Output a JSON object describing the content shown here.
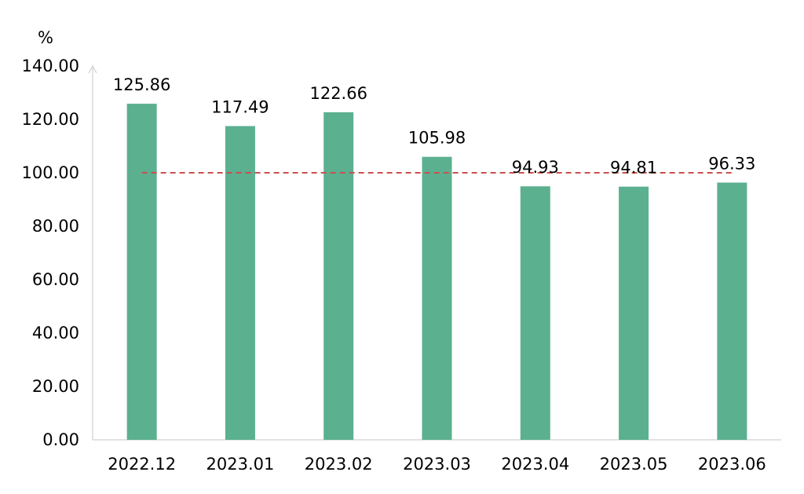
{
  "chart_data": {
    "type": "bar",
    "title": "",
    "xlabel": "",
    "ylabel": "%",
    "categories": [
      "2022.12",
      "2023.01",
      "2023.02",
      "2023.03",
      "2023.04",
      "2023.05",
      "2023.06"
    ],
    "series": [
      {
        "values": [
          125.86,
          117.49,
          122.66,
          105.98,
          94.93,
          94.81,
          96.33
        ],
        "color": "#5bb090"
      }
    ],
    "data_labels": [
      "125.86",
      "117.49",
      "122.66",
      "105.98",
      "94.93",
      "94.81",
      "96.33"
    ],
    "y_ticks": [
      "0.00",
      "20.00",
      "40.00",
      "60.00",
      "80.00",
      "100.00",
      "120.00",
      "140.00"
    ],
    "ylim": [
      0,
      140
    ],
    "reference_line": {
      "value": 100,
      "color": "#c9504f",
      "style": "dashed"
    },
    "grid": false,
    "legend": "none"
  }
}
